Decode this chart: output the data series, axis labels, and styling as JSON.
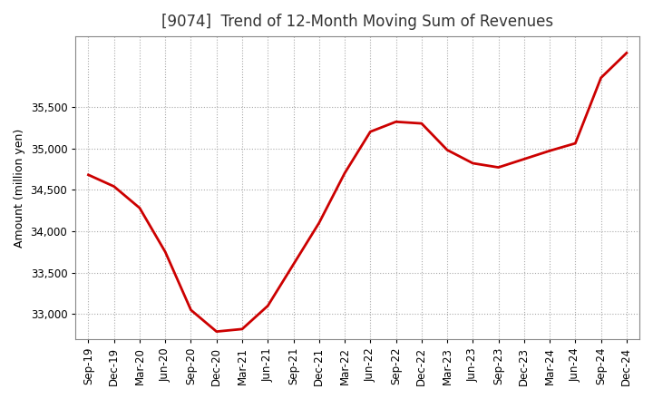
{
  "title": "[9074]  Trend of 12-Month Moving Sum of Revenues",
  "ylabel": "Amount (million yen)",
  "line_color": "#cc0000",
  "line_width": 2.0,
  "background_color": "#ffffff",
  "plot_bg_color": "#ffffff",
  "grid_color": "#aaaaaa",
  "x_labels": [
    "Sep-19",
    "Dec-19",
    "Mar-20",
    "Jun-20",
    "Sep-20",
    "Dec-20",
    "Mar-21",
    "Jun-21",
    "Sep-21",
    "Dec-21",
    "Mar-22",
    "Jun-22",
    "Sep-22",
    "Dec-22",
    "Mar-23",
    "Jun-23",
    "Sep-23",
    "Dec-23",
    "Mar-24",
    "Jun-24",
    "Sep-24",
    "Dec-24"
  ],
  "values": [
    34680,
    34540,
    34280,
    33750,
    33050,
    32790,
    32820,
    33100,
    33600,
    34100,
    34700,
    35200,
    35320,
    35300,
    34980,
    34820,
    34770,
    34870,
    34970,
    35060,
    35850,
    36150
  ],
  "ylim_min": 32700,
  "ylim_max": 36350,
  "yticks": [
    33000,
    33500,
    34000,
    34500,
    35000,
    35500
  ],
  "title_fontsize": 12,
  "title_color": "#333333",
  "axis_fontsize": 9,
  "tick_fontsize": 8.5
}
